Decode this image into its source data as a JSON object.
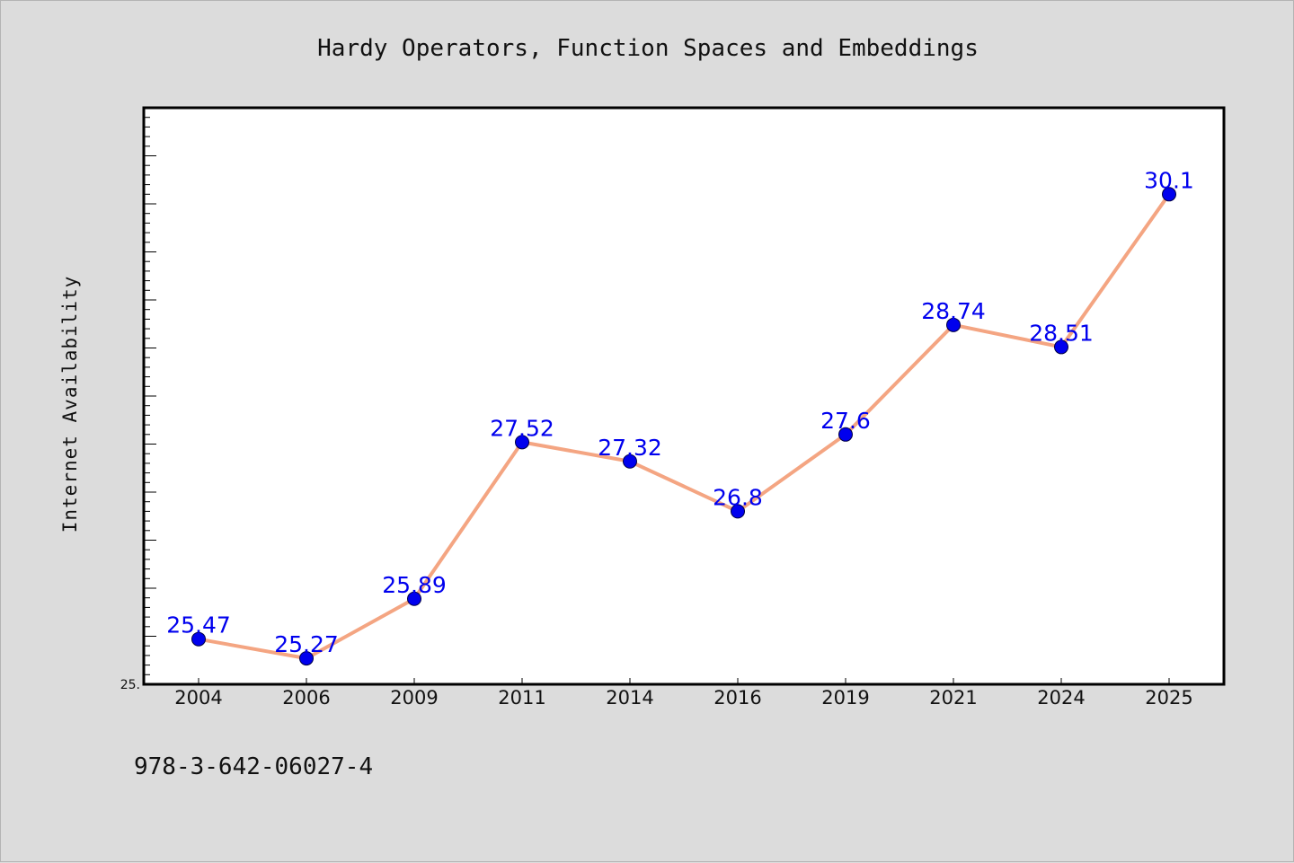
{
  "chart_data": {
    "type": "line",
    "title": "Hardy Operators, Function Spaces and Embeddings",
    "xlabel": "",
    "ylabel": "Internet Availability",
    "categories": [
      "2004",
      "2006",
      "2009",
      "2011",
      "2014",
      "2016",
      "2019",
      "2021",
      "2024",
      "2025"
    ],
    "series": [
      {
        "values": [
          25.47,
          25.27,
          25.89,
          27.52,
          27.32,
          26.8,
          27.6,
          28.74,
          28.51,
          30.1
        ]
      }
    ],
    "data_labels": [
      "25.47",
      "25.27",
      "25.89",
      "27.52",
      "27.32",
      "26.8",
      "27.6",
      "28.74",
      "28.51",
      "30.1"
    ],
    "ylim": [
      25.0,
      31.0
    ],
    "y_tick_labels": [
      "25."
    ],
    "grid": false,
    "legend": "none",
    "colors": {
      "line": "#f4a582",
      "marker": "#0000ee",
      "label": "#0000ee",
      "plot_background": "#ffffff",
      "page_background": "#dcdcdc"
    }
  },
  "footer": {
    "isbn": "978-3-642-06027-4"
  }
}
